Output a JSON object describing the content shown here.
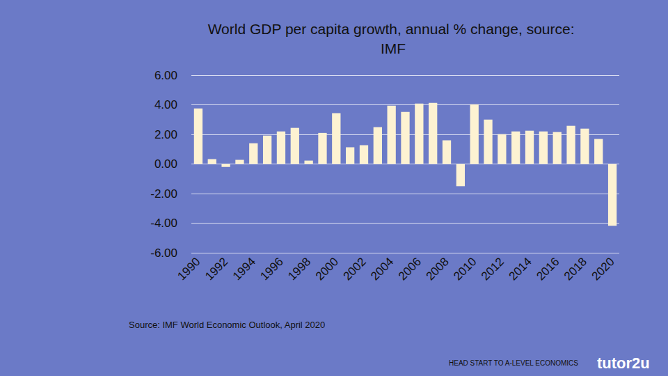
{
  "chart_data": {
    "type": "bar",
    "title": "World GDP per capita growth, annual % change, source: IMF",
    "categories": [
      "1990",
      null,
      "1992",
      null,
      "1994",
      null,
      "1996",
      null,
      "1998",
      null,
      "2000",
      null,
      "2002",
      null,
      "2004",
      null,
      "2006",
      null,
      "2008",
      null,
      "2010",
      null,
      "2012",
      null,
      "2014",
      null,
      "2016",
      null,
      "2018",
      null,
      "2020"
    ],
    "values": [
      3.75,
      0.33,
      -0.2,
      0.28,
      1.4,
      1.92,
      2.2,
      2.44,
      0.23,
      2.1,
      3.43,
      1.13,
      1.27,
      2.49,
      3.94,
      3.52,
      4.08,
      4.13,
      1.6,
      -1.5,
      4.03,
      3.0,
      2.02,
      2.2,
      2.25,
      2.2,
      2.16,
      2.58,
      2.39,
      1.69,
      -4.18
    ],
    "color": "#fdf2d2",
    "ylim": [
      -6,
      6
    ],
    "yticks": [
      {
        "value": -6,
        "label": "-6.00"
      },
      {
        "value": -4,
        "label": "-4.00"
      },
      {
        "value": -2,
        "label": "-2.00"
      },
      {
        "value": 0,
        "label": "0.00"
      },
      {
        "value": 2,
        "label": "2.00"
      },
      {
        "value": 4,
        "label": "4.00"
      },
      {
        "value": 6,
        "label": "6.00"
      }
    ],
    "grid": true,
    "annotations": [
      "Source: IMF World Economic Outlook, April 2020",
      "HEAD START TO A-LEVEL ECONOMICS",
      "tutor2u"
    ]
  }
}
